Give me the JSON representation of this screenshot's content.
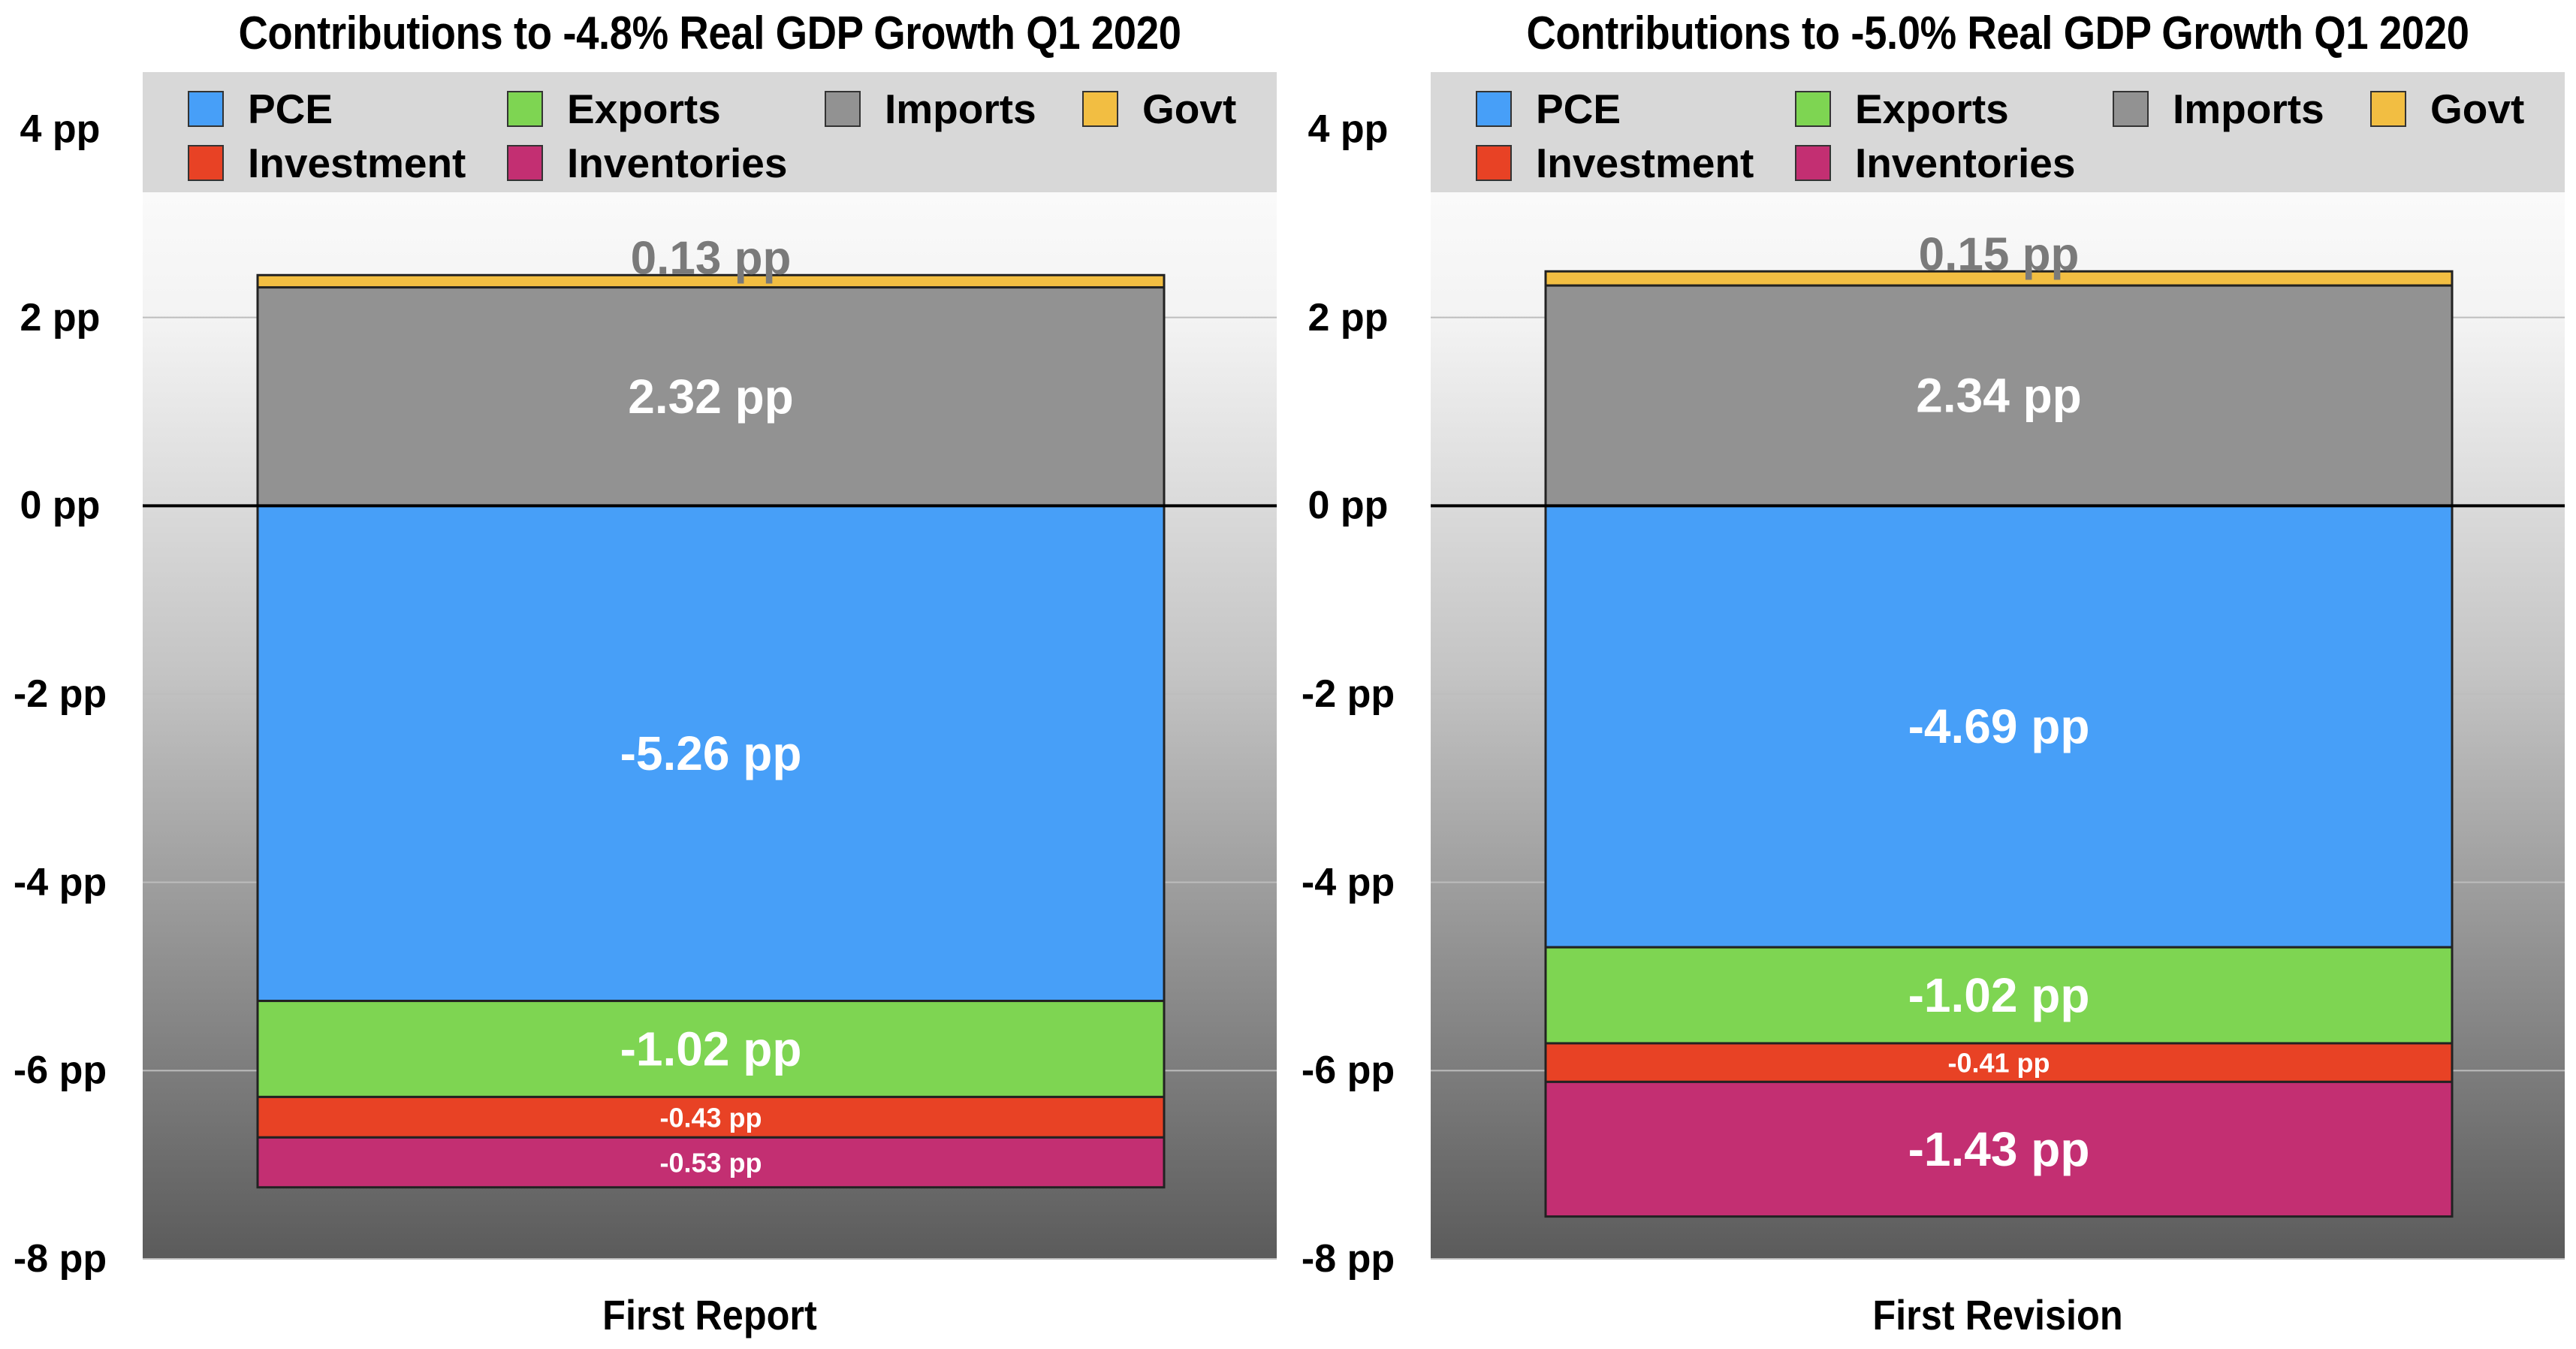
{
  "chart_data": [
    {
      "type": "bar",
      "stacked": true,
      "title": "Contributions to -4.8% Real GDP Growth Q1 2020",
      "category": "First Report",
      "ylim": [
        -8,
        4
      ],
      "y_ticks": [
        "4 pp",
        "2 pp",
        "0 pp",
        "-2 pp",
        "-4 pp",
        "-6 pp",
        "-8 pp"
      ],
      "y_tick_values": [
        4,
        2,
        0,
        -2,
        -4,
        -6,
        -8
      ],
      "legend": [
        "PCE",
        "Exports",
        "Imports",
        "Govt",
        "Investment",
        "Inventories"
      ],
      "legend_position": "top",
      "grid": true,
      "series": [
        {
          "name": "Imports",
          "value": 2.32,
          "label": "2.32 pp",
          "color": "#929292"
        },
        {
          "name": "Govt",
          "value": 0.13,
          "label": "0.13 pp",
          "color": "#F2BE42"
        },
        {
          "name": "PCE",
          "value": -5.26,
          "label": "-5.26 pp",
          "color": "#479FF8"
        },
        {
          "name": "Exports",
          "value": -1.02,
          "label": "-1.02 pp",
          "color": "#7ED552"
        },
        {
          "name": "Investment",
          "value": -0.43,
          "label": "-0.43 pp",
          "color": "#E84225"
        },
        {
          "name": "Inventories",
          "value": -0.53,
          "label": "-0.53 pp",
          "color": "#C32F72"
        }
      ]
    },
    {
      "type": "bar",
      "stacked": true,
      "title": "Contributions to -5.0% Real GDP Growth Q1 2020",
      "category": "First Revision",
      "ylim": [
        -8,
        4
      ],
      "y_ticks": [
        "4 pp",
        "2 pp",
        "0 pp",
        "-2 pp",
        "-4 pp",
        "-6 pp",
        "-8 pp"
      ],
      "y_tick_values": [
        4,
        2,
        0,
        -2,
        -4,
        -6,
        -8
      ],
      "legend": [
        "PCE",
        "Exports",
        "Imports",
        "Govt",
        "Investment",
        "Inventories"
      ],
      "legend_position": "top",
      "grid": true,
      "series": [
        {
          "name": "Imports",
          "value": 2.34,
          "label": "2.34 pp",
          "color": "#929292"
        },
        {
          "name": "Govt",
          "value": 0.15,
          "label": "0.15 pp",
          "color": "#F2BE42"
        },
        {
          "name": "PCE",
          "value": -4.69,
          "label": "-4.69 pp",
          "color": "#479FF8"
        },
        {
          "name": "Exports",
          "value": -1.02,
          "label": "-1.02 pp",
          "color": "#7ED552"
        },
        {
          "name": "Investment",
          "value": -0.41,
          "label": "-0.41 pp",
          "color": "#E84225"
        },
        {
          "name": "Inventories",
          "value": -1.43,
          "label": "-1.43 pp",
          "color": "#C32F72"
        }
      ]
    }
  ],
  "colors": {
    "PCE": "#479FF8",
    "Exports": "#7ED552",
    "Imports": "#929292",
    "Govt": "#F2BE42",
    "Investment": "#E84225",
    "Inventories": "#C32F72"
  }
}
